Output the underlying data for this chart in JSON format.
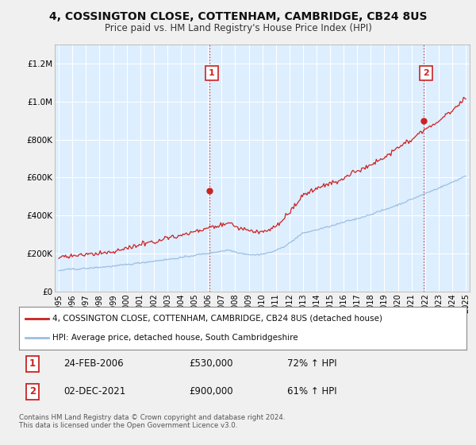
{
  "title": "4, COSSINGTON CLOSE, COTTENHAM, CAMBRIDGE, CB24 8US",
  "subtitle": "Price paid vs. HM Land Registry's House Price Index (HPI)",
  "legend_line1": "4, COSSINGTON CLOSE, COTTENHAM, CAMBRIDGE, CB24 8US (detached house)",
  "legend_line2": "HPI: Average price, detached house, South Cambridgeshire",
  "annotation1_label": "1",
  "annotation1_date": "24-FEB-2006",
  "annotation1_price": "£530,000",
  "annotation1_hpi": "72% ↑ HPI",
  "annotation1_year": 2006.12,
  "annotation1_value": 530000,
  "annotation2_label": "2",
  "annotation2_date": "02-DEC-2021",
  "annotation2_price": "£900,000",
  "annotation2_hpi": "61% ↑ HPI",
  "annotation2_year": 2021.92,
  "annotation2_value": 900000,
  "hpi_color": "#9bbfe0",
  "price_color": "#cc2222",
  "background_color": "#f0f0f0",
  "plot_bg_color": "#ddeeff",
  "grid_color": "#bbccdd",
  "ylim": [
    0,
    1300000
  ],
  "xlim_start": 1994.7,
  "xlim_end": 2025.3,
  "footer": "Contains HM Land Registry data © Crown copyright and database right 2024.\nThis data is licensed under the Open Government Licence v3.0."
}
